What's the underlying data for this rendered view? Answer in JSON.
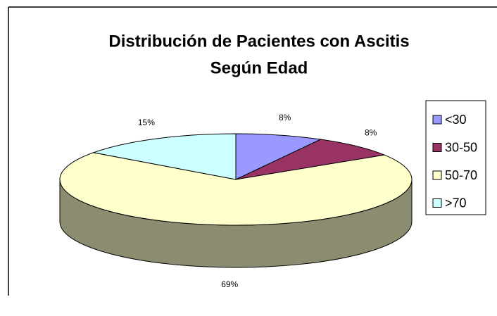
{
  "chart_data": {
    "type": "pie3d",
    "title": [
      "Distribución de Pacientes con Ascitis",
      "Según Edad"
    ],
    "categories": [
      "<30",
      "30-50",
      "50-70",
      ">70"
    ],
    "values": [
      8,
      8,
      69,
      15
    ],
    "value_labels": [
      "8%",
      "8%",
      "69%",
      "15%"
    ],
    "colors": [
      "#9999ff",
      "#993366",
      "#ffffcc",
      "#ccffff"
    ],
    "legend": "right"
  }
}
